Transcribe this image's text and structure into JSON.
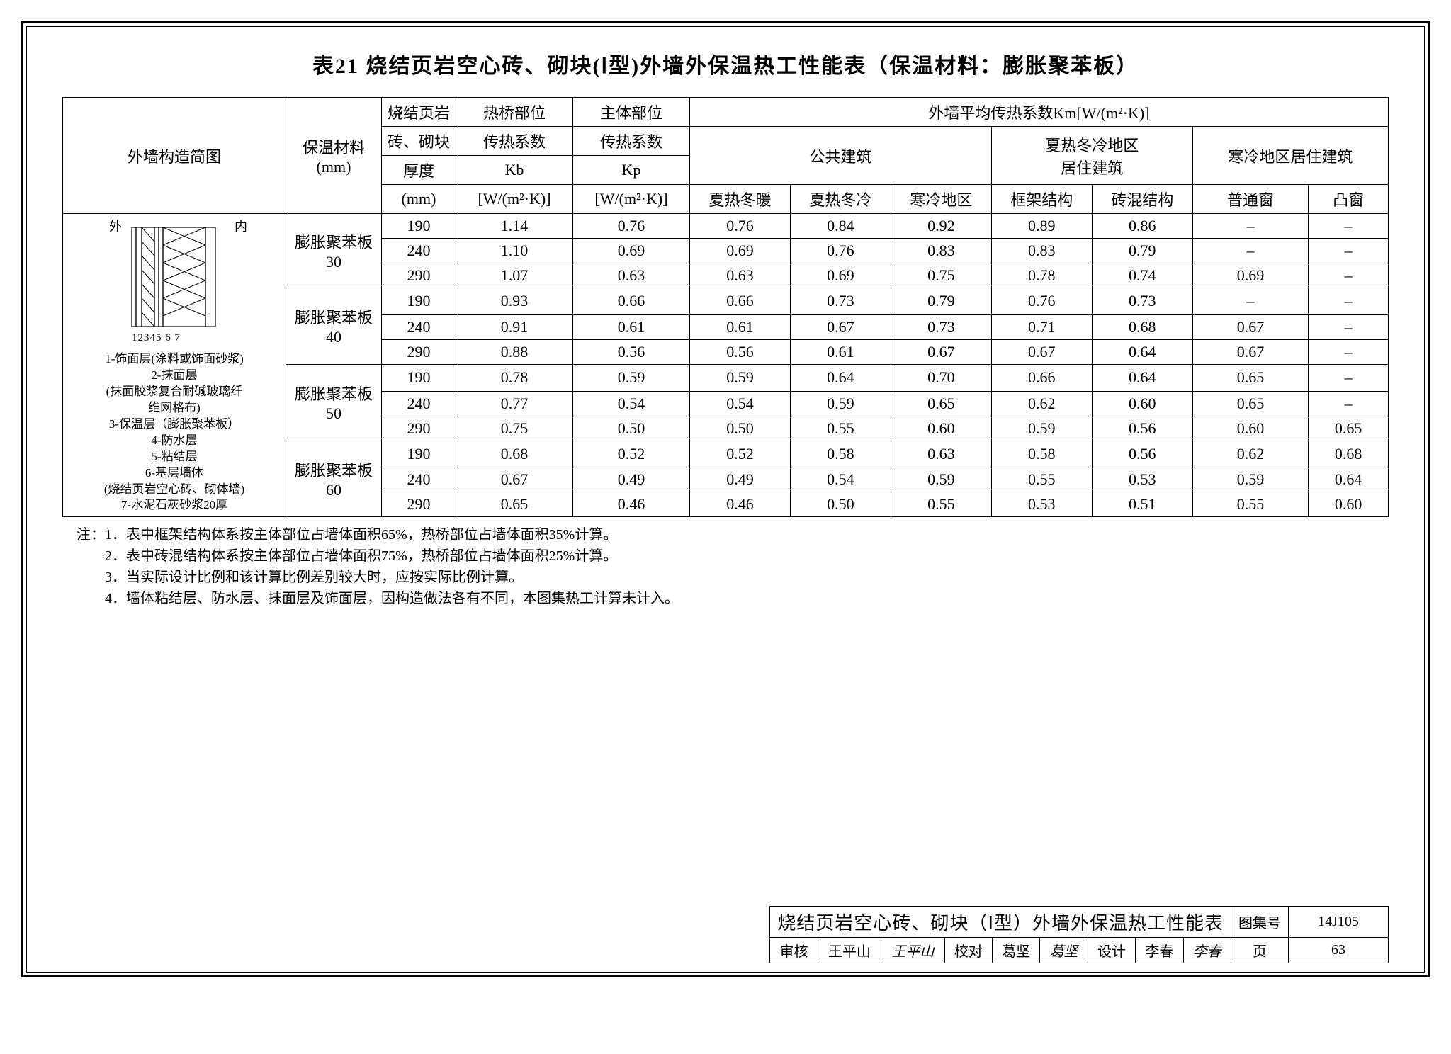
{
  "title": "表21 烧结页岩空心砖、砌块(Ⅰ型)外墙外保温热工性能表（保温材料：膨胀聚苯板）",
  "headers": {
    "col_diagram": "外墙构造简图",
    "col_material": "保温材料\n(mm)",
    "col_thickness_h1": "烧结页岩",
    "col_thickness_h2": "砖、砌块",
    "col_thickness_h3": "厚度",
    "col_thickness_h4": "(mm)",
    "col_kb_h1": "热桥部位",
    "col_kb_h2": "传热系数",
    "col_kb_h3": "Kb",
    "col_kb_h4": "[W/(m²·K)]",
    "col_kp_h1": "主体部位",
    "col_kp_h2": "传热系数",
    "col_kp_h3": "Kp",
    "col_kp_h4": "[W/(m²·K)]",
    "col_km": "外墙平均传热系数Km[W/(m²·K)]",
    "col_public": "公共建筑",
    "col_warm_res": "夏热冬冷地区\n居住建筑",
    "col_cold_res": "寒冷地区居住建筑",
    "sub_hw": "夏热冬暖",
    "sub_hc": "夏热冬冷",
    "sub_cold": "寒冷地区",
    "sub_frame": "框架结构",
    "sub_brick": "砖混结构",
    "sub_win": "普通窗",
    "sub_bay": "凸窗"
  },
  "diagram": {
    "outside": "外",
    "inside": "内",
    "numbers": "12345  6   7",
    "legend": [
      "1-饰面层(涂料或饰面砂浆)",
      "2-抹面层",
      "(抹面胶浆复合耐碱玻璃纤",
      "维网格布)",
      "3-保温层（膨胀聚苯板）",
      "4-防水层",
      "5-粘结层",
      "6-基层墙体",
      "(烧结页岩空心砖、砌体墙)",
      "7-水泥石灰砂浆20厚"
    ]
  },
  "groups": [
    {
      "material": "膨胀聚苯板\n30",
      "rows": [
        {
          "thk": "190",
          "kb": "1.14",
          "kp": "0.76",
          "v": [
            "0.76",
            "0.84",
            "0.92",
            "0.89",
            "0.86",
            "–",
            "–"
          ]
        },
        {
          "thk": "240",
          "kb": "1.10",
          "kp": "0.69",
          "v": [
            "0.69",
            "0.76",
            "0.83",
            "0.83",
            "0.79",
            "–",
            "–"
          ]
        },
        {
          "thk": "290",
          "kb": "1.07",
          "kp": "0.63",
          "v": [
            "0.63",
            "0.69",
            "0.75",
            "0.78",
            "0.74",
            "0.69",
            "–"
          ]
        }
      ]
    },
    {
      "material": "膨胀聚苯板\n40",
      "rows": [
        {
          "thk": "190",
          "kb": "0.93",
          "kp": "0.66",
          "v": [
            "0.66",
            "0.73",
            "0.79",
            "0.76",
            "0.73",
            "–",
            "–"
          ]
        },
        {
          "thk": "240",
          "kb": "0.91",
          "kp": "0.61",
          "v": [
            "0.61",
            "0.67",
            "0.73",
            "0.71",
            "0.68",
            "0.67",
            "–"
          ]
        },
        {
          "thk": "290",
          "kb": "0.88",
          "kp": "0.56",
          "v": [
            "0.56",
            "0.61",
            "0.67",
            "0.67",
            "0.64",
            "0.67",
            "–"
          ]
        }
      ]
    },
    {
      "material": "膨胀聚苯板\n50",
      "rows": [
        {
          "thk": "190",
          "kb": "0.78",
          "kp": "0.59",
          "v": [
            "0.59",
            "0.64",
            "0.70",
            "0.66",
            "0.64",
            "0.65",
            "–"
          ]
        },
        {
          "thk": "240",
          "kb": "0.77",
          "kp": "0.54",
          "v": [
            "0.54",
            "0.59",
            "0.65",
            "0.62",
            "0.60",
            "0.65",
            "–"
          ]
        },
        {
          "thk": "290",
          "kb": "0.75",
          "kp": "0.50",
          "v": [
            "0.50",
            "0.55",
            "0.60",
            "0.59",
            "0.56",
            "0.60",
            "0.65"
          ]
        }
      ]
    },
    {
      "material": "膨胀聚苯板\n60",
      "rows": [
        {
          "thk": "190",
          "kb": "0.68",
          "kp": "0.52",
          "v": [
            "0.52",
            "0.58",
            "0.63",
            "0.58",
            "0.56",
            "0.62",
            "0.68"
          ]
        },
        {
          "thk": "240",
          "kb": "0.67",
          "kp": "0.49",
          "v": [
            "0.49",
            "0.54",
            "0.59",
            "0.55",
            "0.53",
            "0.59",
            "0.64"
          ]
        },
        {
          "thk": "290",
          "kb": "0.65",
          "kp": "0.46",
          "v": [
            "0.46",
            "0.50",
            "0.55",
            "0.53",
            "0.51",
            "0.55",
            "0.60"
          ]
        }
      ]
    }
  ],
  "notes_label": "注：",
  "notes": [
    "1．表中框架结构体系按主体部位占墙体面积65%，热桥部位占墙体面积35%计算。",
    "2．表中砖混结构体系按主体部位占墙体面积75%，热桥部位占墙体面积25%计算。",
    "3．当实际设计比例和该计算比例差别较大时，应按实际比例计算。",
    "4．墙体粘结层、防水层、抹面层及饰面层，因构造做法各有不同，本图集热工计算未计入。"
  ],
  "titleblock": {
    "name": "烧结页岩空心砖、砌块（Ⅰ型）外墙外保温热工性能表",
    "code_label": "图集号",
    "code": "14J105",
    "review_label": "审核",
    "review_name": "王平山",
    "review_sig": "王平山",
    "check_label": "校对",
    "check_name": "葛坚",
    "check_sig": "葛坚",
    "design_label": "设计",
    "design_name": "李春",
    "design_sig": "李春",
    "page_label": "页",
    "page": "63"
  },
  "style": {
    "border_color": "#000000",
    "background": "#ffffff",
    "title_fontsize": 30,
    "body_fontsize": 22,
    "legend_fontsize": 17,
    "notes_fontsize": 20
  }
}
